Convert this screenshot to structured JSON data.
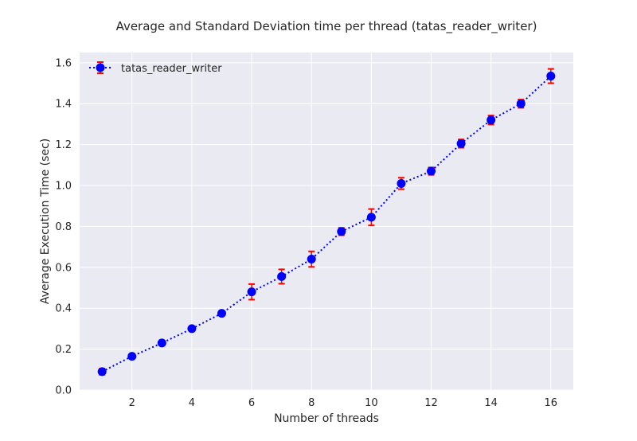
{
  "chart_data": {
    "type": "line",
    "title": "Average and Standard Deviation time per thread (tatas_reader_writer)",
    "xlabel": "Number of threads",
    "ylabel": "Average Execution Time (sec)",
    "xlim": [
      0.25,
      16.75
    ],
    "ylim": [
      0.0,
      1.65
    ],
    "xticks": [
      2,
      4,
      6,
      8,
      10,
      12,
      14,
      16
    ],
    "yticks": [
      0.0,
      0.2,
      0.4,
      0.6,
      0.8,
      1.0,
      1.2,
      1.4,
      1.6
    ],
    "ytick_labels": [
      "0.0",
      "0.2",
      "0.4",
      "0.6",
      "0.8",
      "1.0",
      "1.2",
      "1.4",
      "1.6"
    ],
    "grid": true,
    "legend_position": "top-left",
    "series": [
      {
        "name": "tatas_reader_writer",
        "line_style": "dotted",
        "marker": "circle",
        "line_color": "#0000ff",
        "errorbar_color": "#ff0000",
        "x": [
          1,
          2,
          3,
          4,
          5,
          6,
          7,
          8,
          9,
          10,
          11,
          12,
          13,
          14,
          15,
          16
        ],
        "y": [
          0.09,
          0.165,
          0.23,
          0.3,
          0.375,
          0.48,
          0.555,
          0.64,
          0.775,
          0.845,
          1.01,
          1.07,
          1.205,
          1.32,
          1.4,
          1.535
        ],
        "err": [
          0.015,
          0.012,
          0.01,
          0.008,
          0.008,
          0.038,
          0.035,
          0.038,
          0.018,
          0.04,
          0.028,
          0.018,
          0.02,
          0.022,
          0.02,
          0.035
        ]
      }
    ]
  },
  "colors": {
    "plot_background": "#eaeaf2",
    "grid": "#ffffff",
    "text": "#262626"
  }
}
